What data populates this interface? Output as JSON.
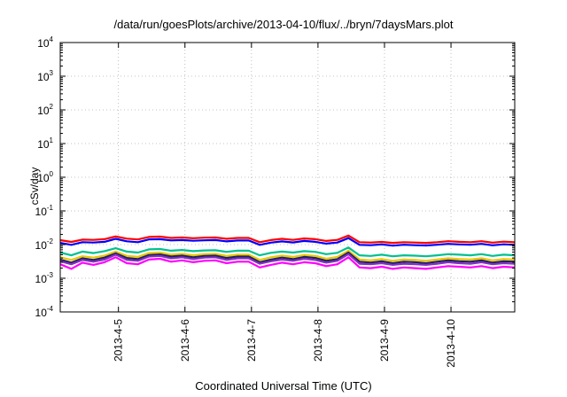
{
  "chart_data": {
    "type": "line",
    "title": "/data/run/goesPlots/archive/2013-04-10/flux/../bryn/7daysMars.plot",
    "xlabel": "Coordinated Universal Time (UTC)",
    "ylabel": "cSv/day",
    "yscale": "log",
    "ylim": [
      0.0001,
      10000
    ],
    "yticks": [
      {
        "base": "10",
        "exp": "-4"
      },
      {
        "base": "10",
        "exp": "-3"
      },
      {
        "base": "10",
        "exp": "-2"
      },
      {
        "base": "10",
        "exp": "-1"
      },
      {
        "base": "10",
        "exp": "0"
      },
      {
        "base": "10",
        "exp": "1"
      },
      {
        "base": "10",
        "exp": "2"
      },
      {
        "base": "10",
        "exp": "3"
      },
      {
        "base": "10",
        "exp": "4"
      }
    ],
    "xlim": [
      "2013-04-04T03:00",
      "2013-04-10T23:00"
    ],
    "xticks": [
      "2013-4-5",
      "2013-4-6",
      "2013-4-7",
      "2013-4-8",
      "2013-4-9",
      "2013-4-10"
    ],
    "xtick_dates": [
      "2013-04-05",
      "2013-04-06",
      "2013-04-07",
      "2013-04-08",
      "2013-04-09",
      "2013-04-10"
    ],
    "grid": true,
    "x": [
      "2013-04-04T03:00",
      "2013-04-04T07:00",
      "2013-04-04T11:00",
      "2013-04-04T15:00",
      "2013-04-04T19:00",
      "2013-04-04T23:00",
      "2013-04-05T03:00",
      "2013-04-05T07:00",
      "2013-04-05T11:00",
      "2013-04-05T15:00",
      "2013-04-05T19:00",
      "2013-04-05T23:00",
      "2013-04-06T03:00",
      "2013-04-06T07:00",
      "2013-04-06T11:00",
      "2013-04-06T15:00",
      "2013-04-06T19:00",
      "2013-04-06T23:00",
      "2013-04-07T03:00",
      "2013-04-07T07:00",
      "2013-04-07T11:00",
      "2013-04-07T15:00",
      "2013-04-07T19:00",
      "2013-04-07T23:00",
      "2013-04-08T03:00",
      "2013-04-08T07:00",
      "2013-04-08T11:00",
      "2013-04-08T15:00",
      "2013-04-08T19:00",
      "2013-04-08T23:00",
      "2013-04-09T03:00",
      "2013-04-09T07:00",
      "2013-04-09T11:00",
      "2013-04-09T15:00",
      "2013-04-09T19:00",
      "2013-04-09T23:00",
      "2013-04-10T03:00",
      "2013-04-10T07:00",
      "2013-04-10T11:00",
      "2013-04-10T15:00",
      "2013-04-10T19:00",
      "2013-04-10T23:00"
    ],
    "series": [
      {
        "color": "#ff0000",
        "values": [
          0.0135,
          0.012,
          0.014,
          0.0138,
          0.0145,
          0.0175,
          0.015,
          0.0142,
          0.0168,
          0.0172,
          0.0158,
          0.0162,
          0.0155,
          0.016,
          0.0162,
          0.0148,
          0.0158,
          0.0158,
          0.0118,
          0.0136,
          0.0148,
          0.0138,
          0.0152,
          0.0145,
          0.0128,
          0.0138,
          0.0185,
          0.0118,
          0.0115,
          0.012,
          0.0112,
          0.0118,
          0.0115,
          0.0112,
          0.0118,
          0.0126,
          0.0121,
          0.0118,
          0.0126,
          0.0114,
          0.0122,
          0.0118
        ]
      },
      {
        "color": "#0000ff",
        "values": [
          0.0112,
          0.0098,
          0.0118,
          0.0115,
          0.0121,
          0.0148,
          0.0125,
          0.0118,
          0.0142,
          0.0145,
          0.0133,
          0.0136,
          0.013,
          0.0134,
          0.0136,
          0.0124,
          0.0132,
          0.0132,
          0.0098,
          0.0114,
          0.0124,
          0.0116,
          0.0128,
          0.0121,
          0.0107,
          0.0115,
          0.0156,
          0.0098,
          0.0096,
          0.0101,
          0.0093,
          0.0099,
          0.0096,
          0.0094,
          0.0099,
          0.0105,
          0.0101,
          0.0099,
          0.0105,
          0.0095,
          0.0102,
          0.0098
        ]
      },
      {
        "color": "#00c090",
        "values": [
          0.0058,
          0.0048,
          0.0062,
          0.0056,
          0.0064,
          0.0078,
          0.0062,
          0.0058,
          0.0072,
          0.0074,
          0.0066,
          0.0069,
          0.0064,
          0.0067,
          0.0068,
          0.0061,
          0.0066,
          0.0066,
          0.0048,
          0.0057,
          0.0062,
          0.0058,
          0.0064,
          0.0061,
          0.0052,
          0.0057,
          0.0082,
          0.0048,
          0.0046,
          0.005,
          0.0045,
          0.0048,
          0.0047,
          0.0045,
          0.0048,
          0.0052,
          0.005,
          0.0048,
          0.0052,
          0.0046,
          0.005,
          0.0048
        ]
      },
      {
        "color": "#e8c800",
        "values": [
          0.0042,
          0.0035,
          0.0045,
          0.0041,
          0.0047,
          0.0062,
          0.0046,
          0.0043,
          0.0056,
          0.0058,
          0.005,
          0.0053,
          0.0048,
          0.0052,
          0.0053,
          0.0046,
          0.005,
          0.005,
          0.0035,
          0.0042,
          0.0047,
          0.0043,
          0.0049,
          0.0046,
          0.0038,
          0.0043,
          0.0066,
          0.0036,
          0.0034,
          0.0037,
          0.0033,
          0.0036,
          0.0035,
          0.0033,
          0.0036,
          0.0039,
          0.0037,
          0.0036,
          0.0039,
          0.0034,
          0.0037,
          0.0036
        ]
      },
      {
        "color": "#202060",
        "values": [
          0.0036,
          0.0029,
          0.0039,
          0.0035,
          0.0041,
          0.0055,
          0.004,
          0.0037,
          0.0049,
          0.0051,
          0.0044,
          0.0047,
          0.0042,
          0.0046,
          0.0047,
          0.004,
          0.0044,
          0.0044,
          0.003,
          0.0036,
          0.0041,
          0.0037,
          0.0043,
          0.004,
          0.0033,
          0.0037,
          0.0058,
          0.0031,
          0.0029,
          0.0032,
          0.0028,
          0.0031,
          0.003,
          0.0028,
          0.0031,
          0.0034,
          0.0032,
          0.0031,
          0.0034,
          0.0029,
          0.0032,
          0.0031
        ]
      },
      {
        "color": "#8030c0",
        "values": [
          0.0032,
          0.0026,
          0.0035,
          0.0031,
          0.0036,
          0.005,
          0.0035,
          0.0033,
          0.0044,
          0.0046,
          0.0039,
          0.0042,
          0.0037,
          0.0041,
          0.0042,
          0.0035,
          0.0039,
          0.0039,
          0.0027,
          0.0032,
          0.0036,
          0.0033,
          0.0038,
          0.0035,
          0.0029,
          0.0033,
          0.0052,
          0.0027,
          0.0026,
          0.0028,
          0.0025,
          0.0027,
          0.0026,
          0.0025,
          0.0027,
          0.003,
          0.0028,
          0.0027,
          0.003,
          0.0026,
          0.0028,
          0.0027
        ]
      },
      {
        "color": "#ff00ff",
        "values": [
          0.0026,
          0.0019,
          0.0029,
          0.0025,
          0.003,
          0.0042,
          0.0028,
          0.0026,
          0.0036,
          0.0038,
          0.0031,
          0.0034,
          0.003,
          0.0033,
          0.0034,
          0.0028,
          0.0031,
          0.0031,
          0.0021,
          0.0025,
          0.0029,
          0.0026,
          0.003,
          0.0028,
          0.0023,
          0.0026,
          0.0042,
          0.0021,
          0.002,
          0.0022,
          0.0019,
          0.0021,
          0.002,
          0.0019,
          0.0021,
          0.0023,
          0.0022,
          0.0021,
          0.0023,
          0.002,
          0.0022,
          0.0021
        ]
      }
    ]
  }
}
